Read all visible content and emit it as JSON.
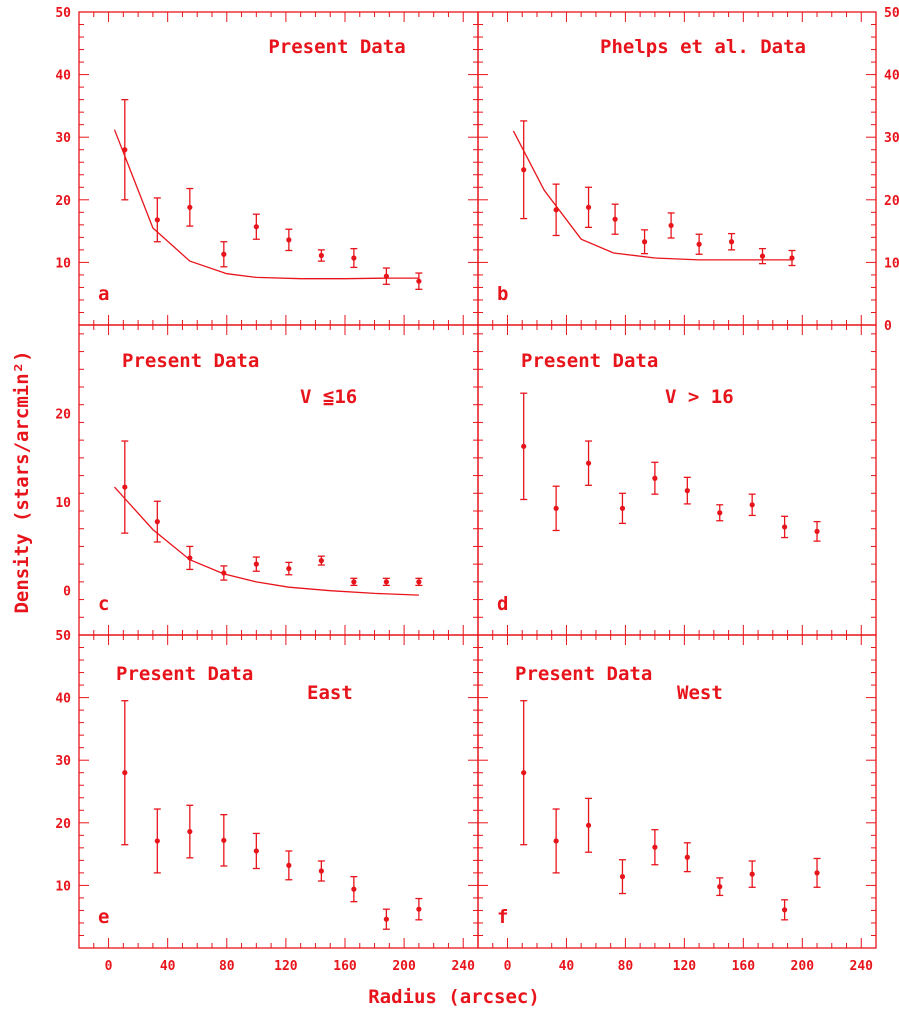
{
  "figure": {
    "xlabel": "Radius (arcsec)",
    "ylabel": "Density (stars/arcmin²)",
    "color": "#e8141b"
  },
  "chart_data": [
    {
      "type": "scatter",
      "panel": "a",
      "text1": "Present Data",
      "text2": "",
      "xlim": [
        -20,
        250
      ],
      "ylim": [
        0,
        50
      ],
      "yticks": [
        "",
        "10",
        "20",
        "30",
        "40",
        "50"
      ],
      "x": [
        11,
        33,
        55,
        78,
        100,
        122,
        144,
        166,
        188,
        210
      ],
      "y": [
        28,
        16.8,
        18.8,
        11.3,
        15.7,
        13.6,
        11.1,
        10.7,
        7.8,
        7.0
      ],
      "err": [
        8,
        3.5,
        3.0,
        2.0,
        2.0,
        1.7,
        0.9,
        1.5,
        1.3,
        1.3
      ],
      "curve_x": [
        4,
        30,
        55,
        80,
        100,
        130,
        160,
        190,
        210
      ],
      "curve_y": [
        31.2,
        15.5,
        10.2,
        8.2,
        7.6,
        7.4,
        7.4,
        7.5,
        7.5
      ]
    },
    {
      "type": "scatter",
      "panel": "b",
      "text1": "Phelps et al. Data",
      "text2": "",
      "xlim": [
        -20,
        250
      ],
      "ylim": [
        0,
        50
      ],
      "yticks": [
        "0",
        "10",
        "20",
        "30",
        "40",
        "50"
      ],
      "x": [
        11,
        33,
        55,
        73,
        93,
        111,
        130,
        152,
        173,
        193
      ],
      "y": [
        24.8,
        18.4,
        18.8,
        16.9,
        13.3,
        15.9,
        12.9,
        13.3,
        11.0,
        10.7
      ],
      "err": [
        7.8,
        4.1,
        3.2,
        2.4,
        1.9,
        2.0,
        1.6,
        1.3,
        1.2,
        1.2
      ],
      "curve_x": [
        4,
        25,
        50,
        72,
        100,
        130,
        160,
        193
      ],
      "curve_y": [
        31,
        21.5,
        13.7,
        11.5,
        10.7,
        10.4,
        10.4,
        10.4
      ]
    },
    {
      "type": "scatter",
      "panel": "c",
      "text1": "Present Data",
      "text2": "V  ≦16",
      "xlim": [
        -20,
        250
      ],
      "ylim": [
        -5,
        30
      ],
      "yticks": [
        "0",
        "10",
        "20"
      ],
      "x": [
        11,
        33,
        55,
        78,
        100,
        122,
        144,
        166,
        188,
        210
      ],
      "y": [
        11.7,
        7.8,
        3.7,
        2.0,
        3.0,
        2.5,
        3.4,
        1.0,
        1.0,
        1.0
      ],
      "err": [
        5.2,
        2.3,
        1.3,
        0.8,
        0.8,
        0.7,
        0.5,
        0.4,
        0.4,
        0.4
      ],
      "curve_x": [
        4,
        30,
        55,
        78,
        100,
        122,
        150,
        180,
        210
      ],
      "curve_y": [
        11.7,
        6.9,
        3.5,
        1.9,
        1.0,
        0.4,
        0.0,
        -0.3,
        -0.5
      ]
    },
    {
      "type": "scatter",
      "panel": "d",
      "text1": "Present Data",
      "text2": "V > 16",
      "xlim": [
        -20,
        250
      ],
      "ylim": [
        -5,
        30
      ],
      "yticks": [],
      "x": [
        11,
        33,
        55,
        78,
        100,
        122,
        144,
        166,
        188,
        210
      ],
      "y": [
        16.3,
        9.3,
        14.4,
        9.3,
        12.7,
        11.3,
        8.8,
        9.7,
        7.2,
        6.7
      ],
      "err": [
        6.0,
        2.5,
        2.5,
        1.7,
        1.8,
        1.5,
        0.9,
        1.2,
        1.2,
        1.1
      ],
      "curve_x": [],
      "curve_y": []
    },
    {
      "type": "scatter",
      "panel": "e",
      "text1": "Present Data",
      "text2": "East",
      "xlim": [
        -20,
        250
      ],
      "ylim": [
        0,
        50
      ],
      "yticks": [
        "",
        "10",
        "20",
        "30",
        "40",
        "50"
      ],
      "x": [
        11,
        33,
        55,
        78,
        100,
        122,
        144,
        166,
        188,
        210
      ],
      "y": [
        28,
        17.1,
        18.6,
        17.2,
        15.5,
        13.2,
        12.3,
        9.4,
        4.6,
        6.2
      ],
      "err": [
        11.5,
        5.1,
        4.2,
        4.1,
        2.8,
        2.3,
        1.6,
        2.0,
        1.6,
        1.7
      ],
      "curve_x": [],
      "curve_y": []
    },
    {
      "type": "scatter",
      "panel": "f",
      "text1": "Present Data",
      "text2": "West",
      "xlim": [
        -20,
        250
      ],
      "ylim": [
        0,
        50
      ],
      "yticks": [],
      "x": [
        11,
        33,
        55,
        78,
        100,
        122,
        144,
        166,
        188,
        210
      ],
      "y": [
        28,
        17.1,
        19.6,
        11.4,
        16.1,
        14.5,
        9.8,
        11.8,
        6.1,
        12.0
      ],
      "err": [
        11.5,
        5.1,
        4.3,
        2.7,
        2.8,
        2.3,
        1.4,
        2.1,
        1.6,
        2.3
      ],
      "curve_x": [],
      "curve_y": []
    }
  ],
  "xticks": [
    "0",
    "40",
    "80",
    "120",
    "160",
    "200",
    "240"
  ]
}
